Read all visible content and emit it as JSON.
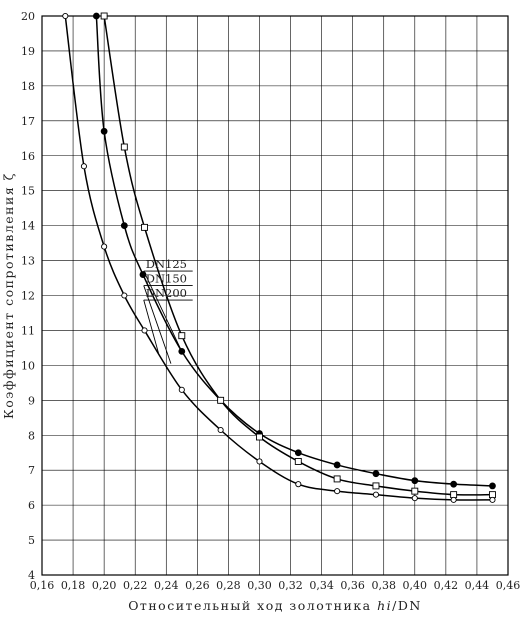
{
  "chart_data": {
    "type": "line",
    "xlabel": "Относительный ход золотника hi/DN",
    "xlabel_plain": "Относительный ход золотника ",
    "xlabel_italic": "hi",
    "xlabel_suffix": "/DN",
    "ylabel": "Коэффициент сопротивления ζ",
    "xlim": [
      0.16,
      0.46
    ],
    "ylim": [
      4,
      20
    ],
    "x_ticks": [
      "0,16",
      "0,18",
      "0,20",
      "0,22",
      "0,24",
      "0,26",
      "0,28",
      "0,30",
      "0,32",
      "0,34",
      "0,36",
      "0,38",
      "0,40",
      "0,42",
      "0,44",
      "0,46"
    ],
    "y_ticks": [
      "4",
      "5",
      "6",
      "7",
      "8",
      "9",
      "10",
      "11",
      "12",
      "13",
      "14",
      "15",
      "16",
      "17",
      "18",
      "19",
      "20"
    ],
    "grid": true,
    "series": [
      {
        "name": "DN125",
        "marker": "filled-circle",
        "points": [
          [
            0.195,
            20.0
          ],
          [
            0.2,
            16.7
          ],
          [
            0.213,
            14.0
          ],
          [
            0.225,
            12.6
          ],
          [
            0.25,
            10.4
          ],
          [
            0.275,
            9.0
          ],
          [
            0.3,
            8.05
          ],
          [
            0.325,
            7.5
          ],
          [
            0.35,
            7.15
          ],
          [
            0.375,
            6.9
          ],
          [
            0.4,
            6.7
          ],
          [
            0.425,
            6.6
          ],
          [
            0.45,
            6.55
          ]
        ]
      },
      {
        "name": "DN150",
        "marker": "open-square",
        "points": [
          [
            0.2,
            20.0
          ],
          [
            0.213,
            16.25
          ],
          [
            0.226,
            13.95
          ],
          [
            0.25,
            10.85
          ],
          [
            0.275,
            9.0
          ],
          [
            0.3,
            7.95
          ],
          [
            0.325,
            7.25
          ],
          [
            0.35,
            6.75
          ],
          [
            0.375,
            6.55
          ],
          [
            0.4,
            6.4
          ],
          [
            0.425,
            6.3
          ],
          [
            0.45,
            6.3
          ]
        ]
      },
      {
        "name": "DN200",
        "marker": "open-circle",
        "points": [
          [
            0.175,
            20.0
          ],
          [
            0.187,
            15.7
          ],
          [
            0.2,
            13.4
          ],
          [
            0.213,
            12.0
          ],
          [
            0.226,
            11.0
          ],
          [
            0.25,
            9.3
          ],
          [
            0.275,
            8.15
          ],
          [
            0.3,
            7.25
          ],
          [
            0.325,
            6.6
          ],
          [
            0.35,
            6.4
          ],
          [
            0.375,
            6.3
          ],
          [
            0.4,
            6.2
          ],
          [
            0.425,
            6.15
          ],
          [
            0.45,
            6.15
          ]
        ]
      }
    ]
  }
}
